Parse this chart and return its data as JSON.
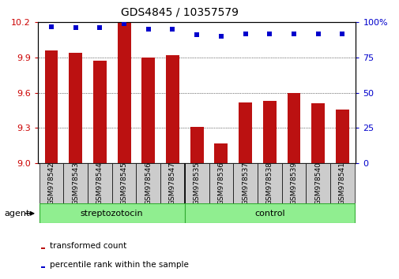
{
  "title": "GDS4845 / 10357579",
  "samples": [
    "GSM978542",
    "GSM978543",
    "GSM978544",
    "GSM978545",
    "GSM978546",
    "GSM978547",
    "GSM978535",
    "GSM978536",
    "GSM978537",
    "GSM978538",
    "GSM978539",
    "GSM978540",
    "GSM978541"
  ],
  "bar_values": [
    9.96,
    9.94,
    9.87,
    10.2,
    9.9,
    9.92,
    9.31,
    9.17,
    9.52,
    9.53,
    9.6,
    9.51,
    9.46
  ],
  "percentile_values": [
    97,
    96,
    96,
    99,
    95,
    95,
    91,
    90,
    92,
    92,
    92,
    92,
    92
  ],
  "ylim_left": [
    9.0,
    10.2
  ],
  "ylim_right": [
    0,
    100
  ],
  "bar_color": "#bb1111",
  "dot_color": "#0000cc",
  "group1_label": "streptozotocin",
  "group1_count": 6,
  "group2_label": "control",
  "group2_count": 7,
  "group_fill_color": "#90ee90",
  "group_edge_color": "#33aa33",
  "yticks_left": [
    9.0,
    9.3,
    9.6,
    9.9,
    10.2
  ],
  "yticks_right": [
    0,
    25,
    50,
    75,
    100
  ],
  "legend_red_label": "transformed count",
  "legend_blue_label": "percentile rank within the sample",
  "agent_label": "agent",
  "left_tick_color": "#cc0000",
  "right_tick_color": "#0000cc",
  "tick_label_bg": "#cccccc",
  "title_fontsize": 10,
  "label_fontsize": 6.5,
  "group_fontsize": 8,
  "legend_fontsize": 7.5
}
